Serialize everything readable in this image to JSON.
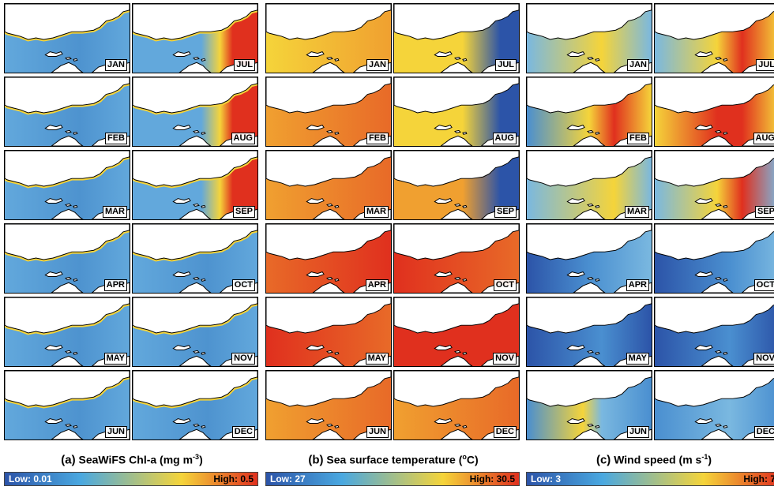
{
  "panels": [
    {
      "key": "chl",
      "prefix": "(a)",
      "title": "SeaWiFS Chl-a (mg m",
      "title_sup": "-3",
      "title_suffix": ")",
      "legend_low": "Low: 0.01",
      "legend_high": "High: 0.5",
      "colors": {
        "sea": "#62a8dc",
        "sea2": "#4e93cf",
        "low": "#2c54a8",
        "mid": "#f5d43a",
        "high": "#e0301e"
      }
    },
    {
      "key": "sst",
      "prefix": "(b)",
      "title": "Sea surface temperature (",
      "title_sup": "o",
      "title_suffix": "C)",
      "legend_low": "Low: 27",
      "legend_high": "High: 30.5",
      "colors": {
        "sea": "#f0a030",
        "sea2": "#e86a28",
        "low": "#2c54a8",
        "mid": "#f5d43a",
        "high": "#e0301e"
      }
    },
    {
      "key": "wind",
      "prefix": "(c)",
      "title": "Wind speed (m s",
      "title_sup": "-1",
      "title_suffix": ")",
      "legend_low": "Low: 3",
      "legend_high": "High: 7",
      "colors": {
        "sea": "#4a8fd0",
        "sea2": "#7ab8e0",
        "low": "#2c54a8",
        "mid": "#f5d43a",
        "high": "#e0301e"
      }
    }
  ],
  "months_left": [
    "JAN",
    "FEB",
    "MAR",
    "APR",
    "MAY",
    "JUN"
  ],
  "months_right": [
    "JUL",
    "AUG",
    "SEP",
    "OCT",
    "NOV",
    "DEC"
  ]
}
